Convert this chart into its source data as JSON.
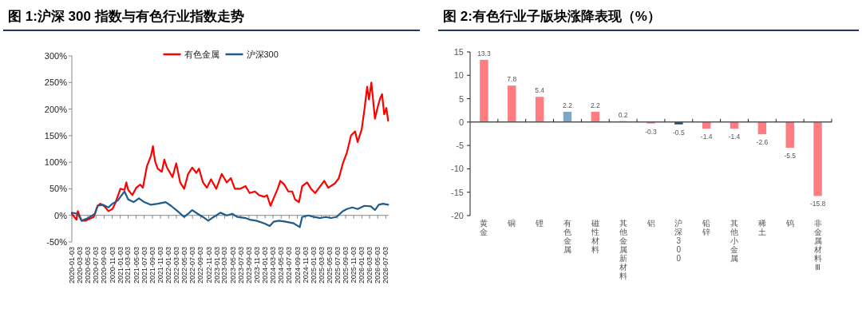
{
  "chart_data": [
    {
      "type": "line",
      "title": "图 1:沪深 300 指数与有色行业指数走势",
      "legend": "top",
      "xlim": [
        "2020-01-03",
        "2026-07-25"
      ],
      "xticks": [
        "2020-01-03",
        "2020-03-03",
        "2020-05-03",
        "2020-07-03",
        "2020-09-03",
        "2020-11-03",
        "2021-01-03",
        "2021-03-03",
        "2021-05-03",
        "2021-07-03",
        "2021-09-03",
        "2021-11-03",
        "2022-01-03",
        "2022-03-03",
        "2022-05-03",
        "2022-07-03",
        "2022-09-03",
        "2022-11-03",
        "2023-01-03",
        "2023-03-03",
        "2023-05-03",
        "2023-07-03",
        "2023-09-03",
        "2023-11-03",
        "2024-01-03",
        "2024-03-03",
        "2024-05-03",
        "2024-07-03",
        "2024-09-03",
        "2024-11-03",
        "2025-01-03",
        "2025-03-03",
        "2025-05-03",
        "2025-07-03",
        "2025-09-03",
        "2025-11-03",
        "2026-01-03",
        "2026-03-03",
        "2026-05-03",
        "2026-07-03"
      ],
      "ylim": [
        -50,
        300
      ],
      "yticks": [
        {
          "value": -50,
          "label": "-50%"
        },
        {
          "value": 0,
          "label": "0%"
        },
        {
          "value": 50,
          "label": "50%"
        },
        {
          "value": 100,
          "label": "100%"
        },
        {
          "value": 150,
          "label": "150%"
        },
        {
          "value": 200,
          "label": "200%"
        },
        {
          "value": 250,
          "label": "250%"
        },
        {
          "value": 300,
          "label": "300%"
        }
      ],
      "series": [
        {
          "name": "有色金属",
          "color": "#ff0000",
          "x": [
            "2020-01-03",
            "2020-02-07",
            "2020-02-17",
            "2020-03-17",
            "2020-04-16",
            "2020-06-16",
            "2020-07-16",
            "2020-08-06",
            "2020-09-05",
            "2020-10-05",
            "2020-11-05",
            "2020-11-25",
            "2021-01-04",
            "2021-02-04",
            "2021-02-18",
            "2021-03-04",
            "2021-04-04",
            "2021-05-04",
            "2021-06-03",
            "2021-06-23",
            "2021-07-23",
            "2021-08-23",
            "2021-09-07",
            "2021-09-23",
            "2021-10-13",
            "2021-11-13",
            "2021-12-02",
            "2021-12-22",
            "2022-02-02",
            "2022-03-02",
            "2022-04-01",
            "2022-05-01",
            "2022-05-31",
            "2022-07-01",
            "2022-08-01",
            "2022-08-21",
            "2022-09-20",
            "2022-10-20",
            "2022-11-20",
            "2022-12-30",
            "2023-02-09",
            "2023-03-19",
            "2023-04-19",
            "2023-05-19",
            "2023-06-28",
            "2023-08-08",
            "2023-09-08",
            "2023-10-18",
            "2023-11-18",
            "2023-12-28",
            "2024-01-17",
            "2024-02-13",
            "2024-03-07",
            "2024-04-07",
            "2024-04-27",
            "2024-05-27",
            "2024-06-26",
            "2024-07-26",
            "2024-08-16",
            "2024-09-15",
            "2024-10-09",
            "2024-11-15",
            "2024-12-15",
            "2025-01-15",
            "2025-02-14",
            "2025-03-25",
            "2025-04-24",
            "2025-06-13",
            "2025-07-13",
            "2025-08-13",
            "2025-09-12",
            "2025-10-13",
            "2025-11-13",
            "2025-12-02",
            "2026-01-02",
            "2026-01-22",
            "2026-02-12",
            "2026-02-26",
            "2026-03-16",
            "2026-04-12",
            "2026-05-01",
            "2026-05-21",
            "2026-06-05",
            "2026-06-21",
            "2026-07-07",
            "2026-07-21"
          ],
          "values": [
            3,
            -8,
            8,
            -10,
            -10,
            -3,
            18,
            22,
            17,
            8,
            12,
            22,
            50,
            48,
            62,
            48,
            38,
            52,
            58,
            52,
            92,
            112,
            130,
            102,
            88,
            82,
            105,
            90,
            72,
            98,
            62,
            50,
            78,
            90,
            80,
            88,
            62,
            52,
            68,
            50,
            78,
            62,
            70,
            50,
            50,
            55,
            42,
            45,
            38,
            35,
            38,
            18,
            32,
            50,
            65,
            58,
            45,
            45,
            30,
            25,
            55,
            62,
            50,
            42,
            52,
            65,
            52,
            60,
            70,
            98,
            118,
            150,
            158,
            138,
            162,
            198,
            242,
            218,
            250,
            182,
            202,
            220,
            228,
            190,
            202,
            178
          ]
        },
        {
          "name": "沪深300",
          "color": "#1f5c8b",
          "x": [
            "2020-01-03",
            "2020-02-17",
            "2020-03-17",
            "2020-05-06",
            "2020-06-26",
            "2020-07-16",
            "2020-08-26",
            "2020-10-05",
            "2020-11-05",
            "2020-12-15",
            "2021-01-14",
            "2021-02-04",
            "2021-03-04",
            "2021-04-14",
            "2021-05-24",
            "2021-07-03",
            "2021-08-23",
            "2021-10-13",
            "2021-12-12",
            "2022-01-22",
            "2022-03-12",
            "2022-05-01",
            "2022-05-31",
            "2022-07-01",
            "2022-08-11",
            "2022-09-20",
            "2022-10-30",
            "2022-12-10",
            "2023-01-30",
            "2023-03-19",
            "2023-04-29",
            "2023-06-08",
            "2023-08-08",
            "2023-09-08",
            "2023-10-28",
            "2023-12-28",
            "2024-02-07",
            "2024-03-07",
            "2024-04-17",
            "2024-06-06",
            "2024-08-06",
            "2024-09-21",
            "2024-10-09",
            "2024-11-25",
            "2025-01-05",
            "2025-02-24",
            "2025-04-04",
            "2025-05-14",
            "2025-06-24",
            "2025-08-13",
            "2025-09-12",
            "2025-10-23",
            "2025-12-02",
            "2026-01-22",
            "2026-03-12",
            "2026-04-12",
            "2026-05-11",
            "2026-06-11",
            "2026-07-21"
          ],
          "values": [
            5,
            3,
            -10,
            -5,
            3,
            18,
            20,
            15,
            22,
            28,
            38,
            45,
            30,
            25,
            32,
            25,
            20,
            22,
            25,
            18,
            8,
            -3,
            3,
            10,
            3,
            -3,
            -10,
            -3,
            5,
            0,
            3,
            -3,
            -5,
            -8,
            -10,
            -15,
            -20,
            -12,
            -10,
            -12,
            -15,
            -22,
            -3,
            0,
            -3,
            -5,
            -3,
            -5,
            -3,
            8,
            12,
            15,
            12,
            18,
            17,
            10,
            20,
            22,
            20
          ]
        }
      ]
    },
    {
      "type": "bar",
      "title": "图 2:有色行业子版块涨降表现（%）",
      "data_labels": true,
      "categories": [
        "黄金",
        "铜",
        "锂",
        "有色金属",
        "磁性材料",
        "其他金属新材料",
        "铝",
        "沪深300",
        "铅锌",
        "其他小金属",
        "稀土",
        "钨",
        "非金属材料Ⅲ"
      ],
      "values": [
        13.3,
        7.8,
        5.4,
        2.2,
        2.2,
        0.2,
        -0.3,
        -0.5,
        -1.4,
        -1.4,
        -2.6,
        -5.5,
        -15.8
      ],
      "colors": [
        "#ff7c80",
        "#ff7c80",
        "#ff7c80",
        "#7fa7c4",
        "#ff7c80",
        "#ff7c80",
        "#ff7c80",
        "#1f4e79",
        "#ff7c80",
        "#ff7c80",
        "#ff7c80",
        "#ff7c80",
        "#ff7c80"
      ],
      "ylim": [
        -20,
        15
      ],
      "yticks": [
        -20,
        -15,
        -10,
        -5,
        0,
        5,
        10,
        15
      ]
    }
  ]
}
